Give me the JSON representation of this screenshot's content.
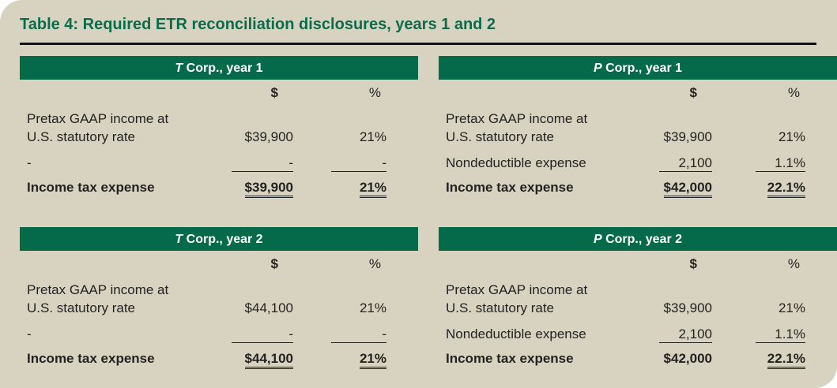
{
  "title": "Table 4: Required ETR reconciliation disclosures, years 1 and 2",
  "columns": {
    "dollar": "$",
    "percent": "%"
  },
  "tables": [
    {
      "entity": "T",
      "heading": " Corp., year 1",
      "rows": [
        {
          "label": "Pretax GAAP income at",
          "amount": "",
          "pct": ""
        },
        {
          "label": "U.S. statutory rate",
          "amount": "$39,900",
          "pct": "21%"
        },
        {
          "label": "-",
          "amount": "-",
          "pct": "-",
          "underline": "single"
        },
        {
          "label": "Income tax expense",
          "amount": "$39,900",
          "pct": "21%",
          "bold": true,
          "underline": "double",
          "pct_underline": "double"
        }
      ]
    },
    {
      "entity": "P",
      "heading": " Corp., year 1",
      "rows": [
        {
          "label": "Pretax GAAP income at",
          "amount": "",
          "pct": ""
        },
        {
          "label": "U.S. statutory rate",
          "amount": "$39,900",
          "pct": "21%"
        },
        {
          "label": "Nondeductible expense",
          "amount": "2,100",
          "pct": "1.1%",
          "underline": "single"
        },
        {
          "label": "Income tax expense",
          "amount": "$42,000",
          "pct": "22.1%",
          "bold": true,
          "underline": "double",
          "pct_underline": "double"
        }
      ]
    },
    {
      "entity": "T",
      "heading": " Corp., year 2",
      "rows": [
        {
          "label": "Pretax GAAP income at",
          "amount": "",
          "pct": ""
        },
        {
          "label": "U.S. statutory rate",
          "amount": "$44,100",
          "pct": "21%"
        },
        {
          "label": "-",
          "amount": "-",
          "pct": "-",
          "underline": "single"
        },
        {
          "label": "Income tax expense",
          "amount": "$44,100",
          "pct": "21%",
          "bold": true,
          "underline": "double",
          "pct_underline": "double"
        }
      ]
    },
    {
      "entity": "P",
      "heading": " Corp., year 2",
      "rows": [
        {
          "label": "Pretax GAAP income at",
          "amount": "",
          "pct": ""
        },
        {
          "label": "U.S. statutory rate",
          "amount": "$39,900",
          "pct": "21%"
        },
        {
          "label": "Nondeductible expense",
          "amount": "2,100",
          "pct": "1.1%",
          "underline": "single"
        },
        {
          "label": "Income tax expense",
          "amount": "$42,000",
          "pct": "22.1%",
          "bold": true,
          "underline": "none",
          "pct_underline": "double"
        }
      ]
    }
  ]
}
